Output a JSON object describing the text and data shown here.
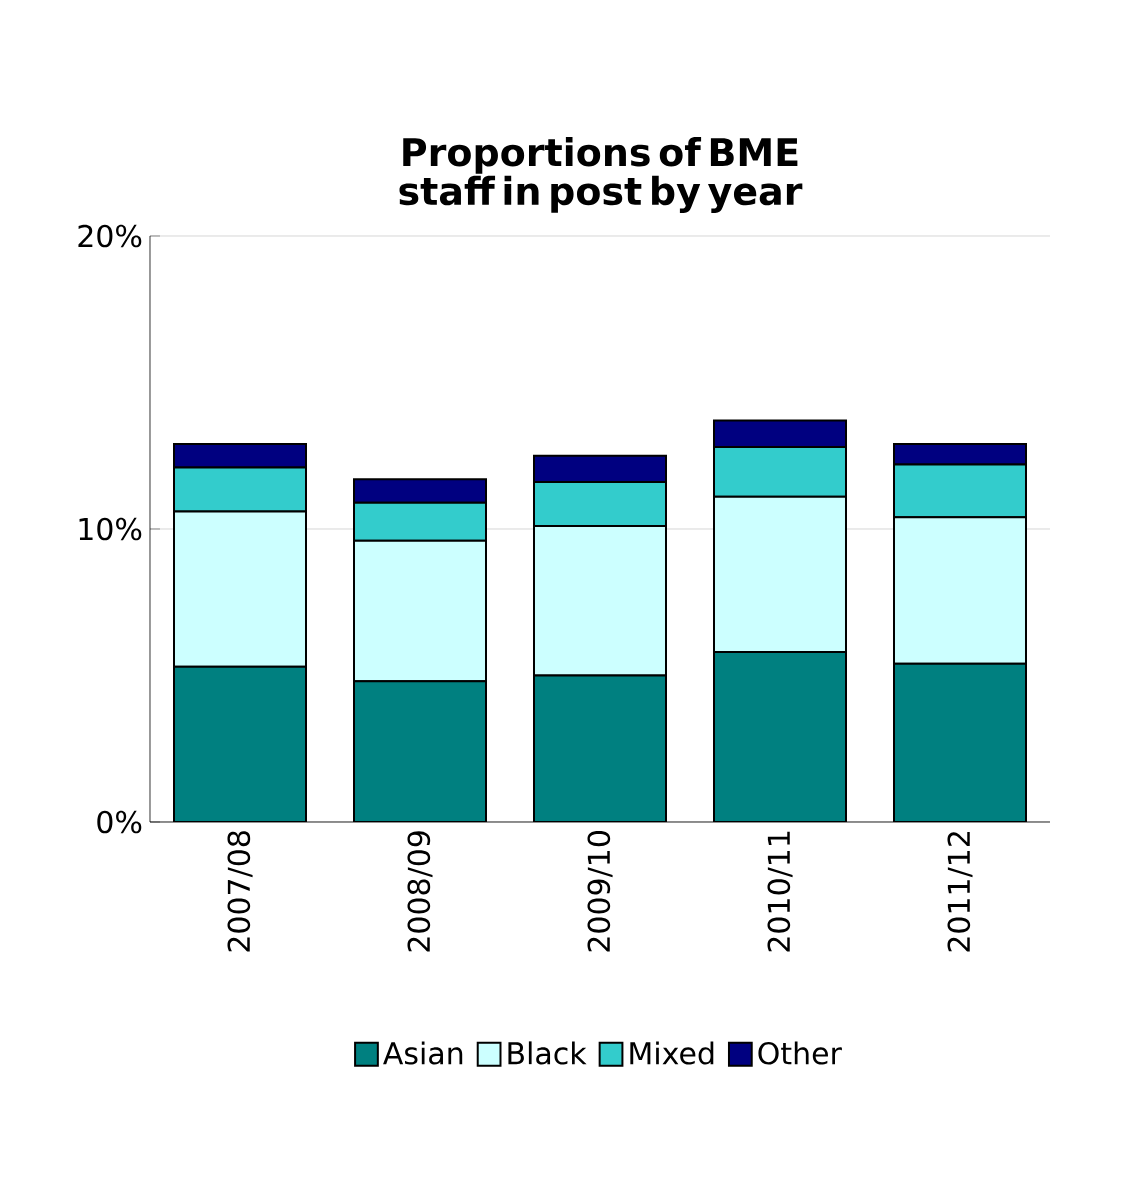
{
  "chart_data": {
    "type": "bar",
    "title": "Proportions of BME staff in post by year",
    "categories": [
      "2007/08",
      "2008/09",
      "2009/10",
      "2010/11",
      "2011/12"
    ],
    "stacked": true,
    "series": [
      {
        "name": "Asian",
        "color": "#008080",
        "values": [
          5.3,
          4.8,
          5.0,
          5.8,
          5.4
        ]
      },
      {
        "name": "Black",
        "color": "#ccffff",
        "values": [
          5.3,
          4.8,
          5.1,
          5.3,
          5.0
        ]
      },
      {
        "name": "Mixed",
        "color": "#33cccc",
        "values": [
          1.5,
          1.3,
          1.5,
          1.7,
          1.8
        ]
      },
      {
        "name": "Other",
        "color": "#000080",
        "values": [
          0.8,
          0.8,
          0.9,
          0.9,
          0.7
        ]
      }
    ],
    "ylim": [
      0,
      20
    ],
    "yticks": [
      {
        "value": 0,
        "label": "0%"
      },
      {
        "value": 10,
        "label": "10%"
      },
      {
        "value": 20,
        "label": "20%"
      }
    ],
    "grid": "y",
    "legend": "bottom"
  }
}
